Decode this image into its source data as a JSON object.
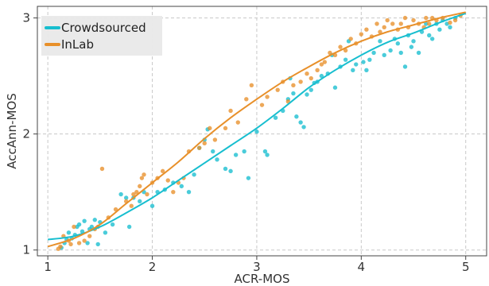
{
  "chart_data": {
    "type": "scatter",
    "xlabel": "ACR-MOS",
    "ylabel": "AccAnn-MOS",
    "xlim": [
      0.9,
      5.2
    ],
    "ylim": [
      0.95,
      3.1
    ],
    "x_ticks": [
      1,
      2,
      3,
      4,
      5
    ],
    "y_ticks": [
      1,
      2,
      3
    ],
    "grid": true,
    "legend_position": "top-left",
    "series": [
      {
        "name": "Crowdsourced",
        "color": "#17becf",
        "points": [
          [
            1.13,
            1.02
          ],
          [
            1.16,
            1.06
          ],
          [
            1.18,
            1.09
          ],
          [
            1.2,
            1.15
          ],
          [
            1.23,
            1.1
          ],
          [
            1.26,
            1.13
          ],
          [
            1.28,
            1.2
          ],
          [
            1.3,
            1.22
          ],
          [
            1.33,
            1.16
          ],
          [
            1.35,
            1.25
          ],
          [
            1.38,
            1.06
          ],
          [
            1.4,
            1.18
          ],
          [
            1.42,
            1.2
          ],
          [
            1.45,
            1.26
          ],
          [
            1.48,
            1.05
          ],
          [
            1.5,
            1.24
          ],
          [
            1.55,
            1.15
          ],
          [
            1.62,
            1.22
          ],
          [
            1.7,
            1.48
          ],
          [
            1.75,
            1.45
          ],
          [
            1.78,
            1.2
          ],
          [
            1.82,
            1.45
          ],
          [
            1.88,
            1.42
          ],
          [
            1.92,
            1.5
          ],
          [
            2.0,
            1.38
          ],
          [
            2.05,
            1.5
          ],
          [
            2.12,
            1.52
          ],
          [
            2.2,
            1.58
          ],
          [
            2.28,
            1.55
          ],
          [
            2.35,
            1.5
          ],
          [
            2.4,
            1.65
          ],
          [
            2.45,
            1.88
          ],
          [
            2.5,
            1.95
          ],
          [
            2.53,
            2.04
          ],
          [
            2.58,
            1.85
          ],
          [
            2.62,
            1.78
          ],
          [
            2.7,
            1.7
          ],
          [
            2.75,
            1.68
          ],
          [
            2.8,
            1.82
          ],
          [
            2.88,
            1.85
          ],
          [
            2.92,
            1.62
          ],
          [
            3.0,
            2.02
          ],
          [
            3.08,
            1.85
          ],
          [
            3.1,
            1.82
          ],
          [
            3.18,
            2.14
          ],
          [
            3.25,
            2.2
          ],
          [
            3.3,
            2.3
          ],
          [
            3.32,
            2.48
          ],
          [
            3.35,
            2.35
          ],
          [
            3.38,
            2.15
          ],
          [
            3.42,
            2.1
          ],
          [
            3.45,
            2.06
          ],
          [
            3.48,
            2.34
          ],
          [
            3.52,
            2.38
          ],
          [
            3.55,
            2.44
          ],
          [
            3.58,
            2.45
          ],
          [
            3.62,
            2.5
          ],
          [
            3.68,
            2.52
          ],
          [
            3.72,
            2.68
          ],
          [
            3.75,
            2.4
          ],
          [
            3.8,
            2.58
          ],
          [
            3.85,
            2.64
          ],
          [
            3.88,
            2.8
          ],
          [
            3.92,
            2.55
          ],
          [
            3.95,
            2.6
          ],
          [
            4.02,
            2.62
          ],
          [
            4.05,
            2.55
          ],
          [
            4.08,
            2.64
          ],
          [
            4.12,
            2.7
          ],
          [
            4.18,
            2.8
          ],
          [
            4.22,
            2.68
          ],
          [
            4.28,
            2.72
          ],
          [
            4.32,
            2.82
          ],
          [
            4.35,
            2.78
          ],
          [
            4.38,
            2.7
          ],
          [
            4.42,
            2.58
          ],
          [
            4.45,
            2.85
          ],
          [
            4.48,
            2.75
          ],
          [
            4.5,
            2.8
          ],
          [
            4.55,
            2.7
          ],
          [
            4.58,
            2.88
          ],
          [
            4.62,
            2.95
          ],
          [
            4.65,
            2.85
          ],
          [
            4.68,
            2.82
          ],
          [
            4.72,
            2.95
          ],
          [
            4.75,
            2.9
          ],
          [
            4.78,
            2.98
          ],
          [
            4.82,
            2.95
          ],
          [
            4.85,
            2.92
          ],
          [
            4.9,
            3.0
          ]
        ],
        "fit": [
          [
            1.0,
            1.09
          ],
          [
            1.25,
            1.12
          ],
          [
            1.5,
            1.2
          ],
          [
            1.75,
            1.32
          ],
          [
            2.0,
            1.45
          ],
          [
            2.25,
            1.6
          ],
          [
            2.5,
            1.75
          ],
          [
            2.75,
            1.9
          ],
          [
            3.0,
            2.05
          ],
          [
            3.25,
            2.22
          ],
          [
            3.5,
            2.4
          ],
          [
            3.75,
            2.55
          ],
          [
            4.0,
            2.68
          ],
          [
            4.25,
            2.79
          ],
          [
            4.5,
            2.87
          ],
          [
            4.75,
            2.96
          ],
          [
            5.0,
            3.04
          ]
        ]
      },
      {
        "name": "InLab",
        "color": "#e8902a",
        "points": [
          [
            1.1,
            1.01
          ],
          [
            1.12,
            1.03
          ],
          [
            1.15,
            1.12
          ],
          [
            1.2,
            1.08
          ],
          [
            1.22,
            1.05
          ],
          [
            1.25,
            1.2
          ],
          [
            1.3,
            1.06
          ],
          [
            1.35,
            1.08
          ],
          [
            1.4,
            1.12
          ],
          [
            1.45,
            1.18
          ],
          [
            1.48,
            1.2
          ],
          [
            1.52,
            1.7
          ],
          [
            1.58,
            1.28
          ],
          [
            1.65,
            1.35
          ],
          [
            1.75,
            1.42
          ],
          [
            1.8,
            1.38
          ],
          [
            1.82,
            1.48
          ],
          [
            1.85,
            1.5
          ],
          [
            1.88,
            1.55
          ],
          [
            1.9,
            1.62
          ],
          [
            1.92,
            1.65
          ],
          [
            1.95,
            1.48
          ],
          [
            2.0,
            1.58
          ],
          [
            2.05,
            1.62
          ],
          [
            2.1,
            1.68
          ],
          [
            2.15,
            1.6
          ],
          [
            2.2,
            1.5
          ],
          [
            2.25,
            1.58
          ],
          [
            2.3,
            1.62
          ],
          [
            2.35,
            1.85
          ],
          [
            2.45,
            1.88
          ],
          [
            2.5,
            1.92
          ],
          [
            2.55,
            2.05
          ],
          [
            2.6,
            1.95
          ],
          [
            2.7,
            2.05
          ],
          [
            2.75,
            2.2
          ],
          [
            2.82,
            2.1
          ],
          [
            2.9,
            2.3
          ],
          [
            2.95,
            2.42
          ],
          [
            3.05,
            2.25
          ],
          [
            3.1,
            2.32
          ],
          [
            3.2,
            2.38
          ],
          [
            3.25,
            2.45
          ],
          [
            3.3,
            2.28
          ],
          [
            3.35,
            2.42
          ],
          [
            3.42,
            2.45
          ],
          [
            3.48,
            2.52
          ],
          [
            3.52,
            2.48
          ],
          [
            3.58,
            2.55
          ],
          [
            3.62,
            2.6
          ],
          [
            3.65,
            2.62
          ],
          [
            3.7,
            2.7
          ],
          [
            3.75,
            2.68
          ],
          [
            3.8,
            2.75
          ],
          [
            3.85,
            2.72
          ],
          [
            3.9,
            2.82
          ],
          [
            3.95,
            2.78
          ],
          [
            4.0,
            2.86
          ],
          [
            4.05,
            2.9
          ],
          [
            4.1,
            2.84
          ],
          [
            4.15,
            2.95
          ],
          [
            4.18,
            2.88
          ],
          [
            4.22,
            2.92
          ],
          [
            4.25,
            2.98
          ],
          [
            4.3,
            2.95
          ],
          [
            4.35,
            2.9
          ],
          [
            4.38,
            2.95
          ],
          [
            4.42,
            3.0
          ],
          [
            4.45,
            2.92
          ],
          [
            4.5,
            2.98
          ],
          [
            4.55,
            2.95
          ],
          [
            4.6,
            2.92
          ],
          [
            4.62,
            3.0
          ],
          [
            4.65,
            2.95
          ],
          [
            4.68,
            3.0
          ],
          [
            4.72,
            2.98
          ],
          [
            4.78,
            3.0
          ],
          [
            4.85,
            2.96
          ],
          [
            4.9,
            2.98
          ],
          [
            4.95,
            3.02
          ]
        ],
        "fit": [
          [
            1.0,
            1.03
          ],
          [
            1.25,
            1.1
          ],
          [
            1.5,
            1.22
          ],
          [
            1.75,
            1.4
          ],
          [
            2.0,
            1.58
          ],
          [
            2.25,
            1.76
          ],
          [
            2.5,
            1.96
          ],
          [
            2.75,
            2.14
          ],
          [
            3.0,
            2.3
          ],
          [
            3.25,
            2.45
          ],
          [
            3.5,
            2.58
          ],
          [
            3.75,
            2.7
          ],
          [
            4.0,
            2.8
          ],
          [
            4.25,
            2.88
          ],
          [
            4.5,
            2.94
          ],
          [
            4.75,
            3.0
          ],
          [
            5.0,
            3.05
          ]
        ]
      }
    ]
  }
}
